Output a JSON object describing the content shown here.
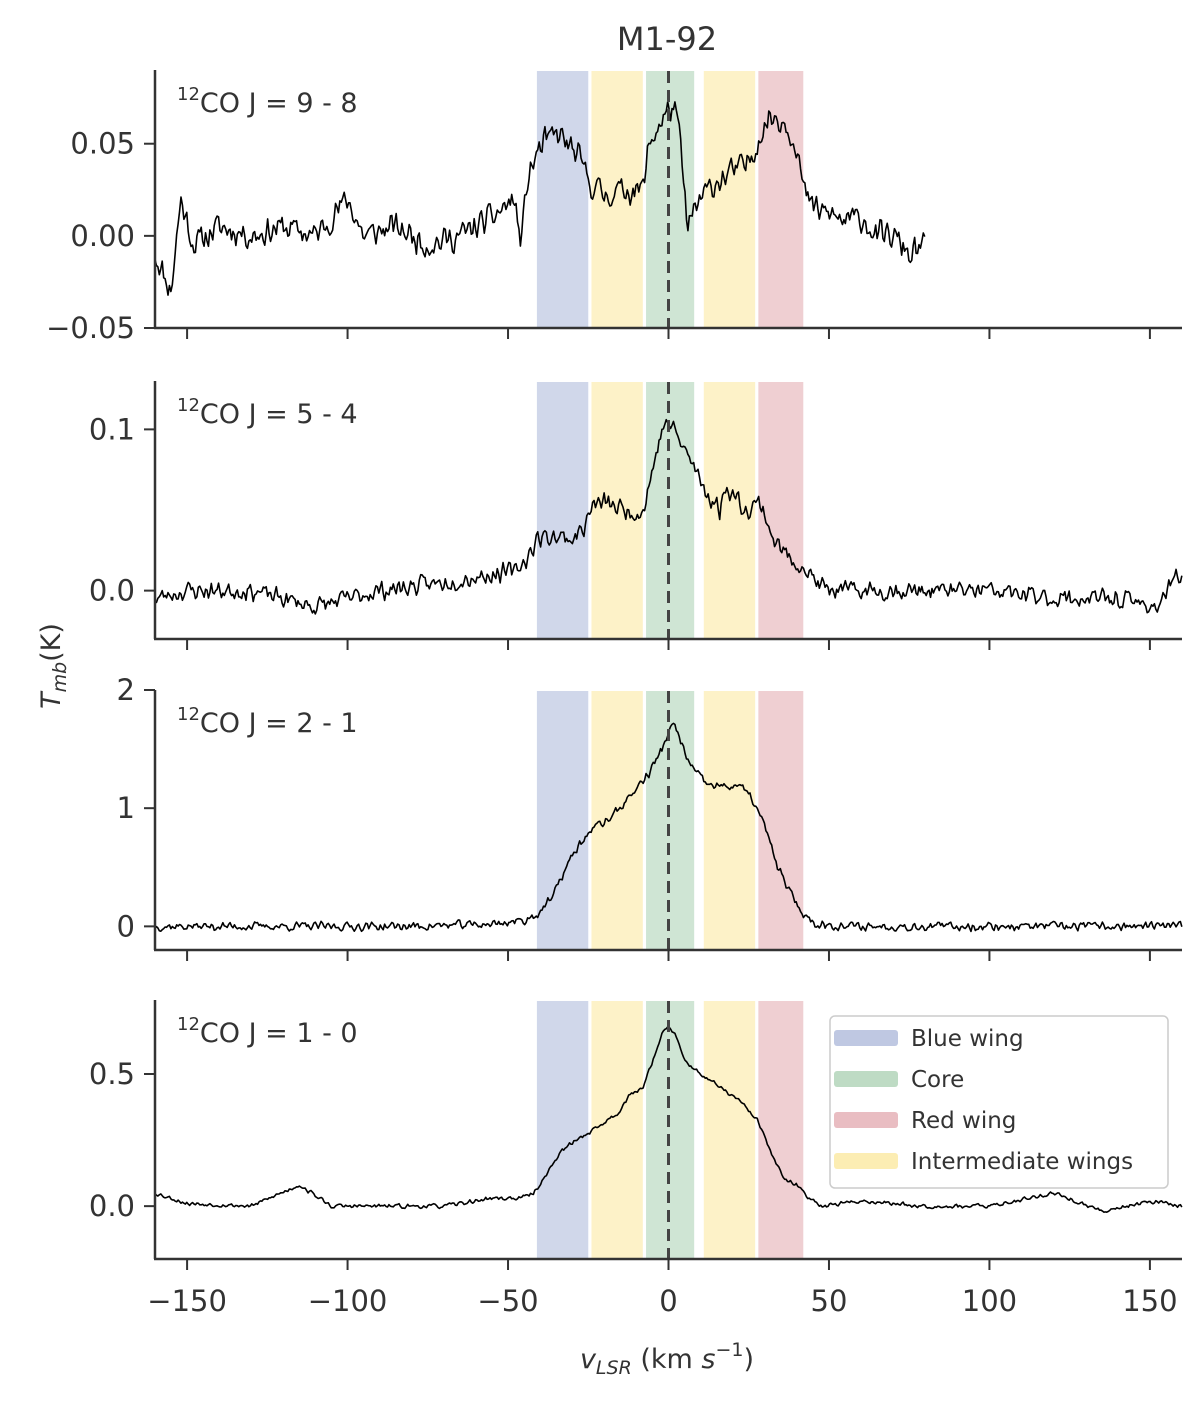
{
  "chart_data": {
    "type": "line",
    "title": "M1-92",
    "xlabel": "v_LSR (km s^-1)",
    "ylabel": "T_mb(K)",
    "xlim": [
      -160,
      160
    ],
    "x_ticks": [
      -150,
      -100,
      -50,
      0,
      50,
      100,
      150
    ],
    "x_tick_labels": [
      "−150",
      "−100",
      "−50",
      "0",
      "50",
      "100",
      "150"
    ],
    "vline_x": 0,
    "regions": [
      {
        "name": "Blue wing",
        "x0": -41,
        "x1": -25,
        "color": "#a9b6d8"
      },
      {
        "name": "Intermediate wings",
        "x0": -24,
        "x1": -8,
        "color": "#fbe79a"
      },
      {
        "name": "Core",
        "x0": -7,
        "x1": 8,
        "color": "#a8cfb0"
      },
      {
        "name": "Intermediate wings",
        "x0": 11,
        "x1": 27,
        "color": "#fbe79a"
      },
      {
        "name": "Red wing",
        "x0": 28,
        "x1": 42,
        "color": "#e2a7ad"
      }
    ],
    "legend": {
      "placement": "right",
      "entries": [
        {
          "label": "Blue wing",
          "color": "#a9b6d8"
        },
        {
          "label": "Core",
          "color": "#a8cfb0"
        },
        {
          "label": "Red wing",
          "color": "#e2a7ad"
        },
        {
          "label": "Intermediate wings",
          "color": "#fbe79a"
        }
      ]
    },
    "panels": [
      {
        "label_sup": "12",
        "label": "CO J = 9 - 8",
        "ylim": [
          -0.05,
          0.09
        ],
        "y_ticks": [
          0.05,
          0.0,
          -0.05
        ],
        "y_tick_labels": [
          "0.05",
          "0.00",
          "−0.05"
        ],
        "x_range": [
          -160,
          80
        ],
        "noise": 0.009,
        "seed": 11,
        "profile": [
          [
            -160,
            -0.01
          ],
          [
            -155,
            -0.03
          ],
          [
            -152,
            0.02
          ],
          [
            -148,
            -0.005
          ],
          [
            -140,
            0.005
          ],
          [
            -130,
            0.0
          ],
          [
            -120,
            0.005
          ],
          [
            -110,
            0.0
          ],
          [
            -100,
            0.02
          ],
          [
            -95,
            0.0
          ],
          [
            -85,
            0.005
          ],
          [
            -75,
            -0.005
          ],
          [
            -65,
            0.0
          ],
          [
            -55,
            0.01
          ],
          [
            -48,
            0.02
          ],
          [
            -46,
            -0.005
          ],
          [
            -44,
            0.03
          ],
          [
            -41,
            0.045
          ],
          [
            -38,
            0.052
          ],
          [
            -34,
            0.055
          ],
          [
            -28,
            0.042
          ],
          [
            -24,
            0.028
          ],
          [
            -20,
            0.022
          ],
          [
            -14,
            0.025
          ],
          [
            -8,
            0.025
          ],
          [
            -6,
            0.05
          ],
          [
            -3,
            0.06
          ],
          [
            0,
            0.068
          ],
          [
            2,
            0.07
          ],
          [
            4,
            0.045
          ],
          [
            5,
            0.02
          ],
          [
            6,
            0.005
          ],
          [
            10,
            0.02
          ],
          [
            14,
            0.028
          ],
          [
            20,
            0.035
          ],
          [
            24,
            0.038
          ],
          [
            27,
            0.048
          ],
          [
            30,
            0.06
          ],
          [
            32,
            0.065
          ],
          [
            36,
            0.062
          ],
          [
            40,
            0.05
          ],
          [
            42,
            0.025
          ],
          [
            45,
            0.015
          ],
          [
            50,
            0.012
          ],
          [
            55,
            0.008
          ],
          [
            60,
            0.01
          ],
          [
            65,
            0.0
          ],
          [
            70,
            0.0
          ],
          [
            75,
            -0.01
          ],
          [
            80,
            -0.005
          ]
        ]
      },
      {
        "label_sup": "12",
        "label": "CO J = 5 - 4",
        "ylim": [
          -0.03,
          0.13
        ],
        "y_ticks": [
          0.1,
          0.0
        ],
        "y_tick_labels": [
          "0.1",
          "0.0"
        ],
        "x_range": [
          -160,
          160
        ],
        "noise": 0.007,
        "seed": 23,
        "profile": [
          [
            -160,
            -0.005
          ],
          [
            -150,
            0.0
          ],
          [
            -130,
            0.0
          ],
          [
            -110,
            -0.01
          ],
          [
            -90,
            0.0
          ],
          [
            -70,
            0.005
          ],
          [
            -55,
            0.01
          ],
          [
            -48,
            0.012
          ],
          [
            -44,
            0.02
          ],
          [
            -41,
            0.032
          ],
          [
            -36,
            0.034
          ],
          [
            -30,
            0.032
          ],
          [
            -26,
            0.04
          ],
          [
            -24,
            0.052
          ],
          [
            -20,
            0.055
          ],
          [
            -14,
            0.05
          ],
          [
            -8,
            0.048
          ],
          [
            -5,
            0.075
          ],
          [
            -2,
            0.1
          ],
          [
            0,
            0.105
          ],
          [
            3,
            0.095
          ],
          [
            7,
            0.08
          ],
          [
            12,
            0.06
          ],
          [
            16,
            0.05
          ],
          [
            18,
            0.065
          ],
          [
            20,
            0.06
          ],
          [
            24,
            0.05
          ],
          [
            28,
            0.055
          ],
          [
            30,
            0.048
          ],
          [
            33,
            0.03
          ],
          [
            38,
            0.02
          ],
          [
            42,
            0.015
          ],
          [
            46,
            0.005
          ],
          [
            50,
            0.0
          ],
          [
            60,
            0.0
          ],
          [
            80,
            0.0
          ],
          [
            100,
            0.0
          ],
          [
            120,
            -0.005
          ],
          [
            140,
            -0.005
          ],
          [
            152,
            -0.01
          ],
          [
            160,
            0.012
          ]
        ]
      },
      {
        "label_sup": "12",
        "label": "CO J = 2 - 1",
        "ylim": [
          -0.2,
          2.0
        ],
        "y_ticks": [
          2,
          1,
          0
        ],
        "y_tick_labels": [
          "2",
          "1",
          "0"
        ],
        "x_range": [
          -160,
          160
        ],
        "noise": 0.045,
        "seed": 37,
        "profile": [
          [
            -160,
            0.0
          ],
          [
            -120,
            0.0
          ],
          [
            -80,
            0.0
          ],
          [
            -55,
            0.02
          ],
          [
            -45,
            0.05
          ],
          [
            -41,
            0.1
          ],
          [
            -36,
            0.25
          ],
          [
            -32,
            0.5
          ],
          [
            -28,
            0.68
          ],
          [
            -24,
            0.82
          ],
          [
            -18,
            0.92
          ],
          [
            -12,
            1.1
          ],
          [
            -6,
            1.3
          ],
          [
            -2,
            1.5
          ],
          [
            0,
            1.65
          ],
          [
            2,
            1.7
          ],
          [
            4,
            1.55
          ],
          [
            7,
            1.35
          ],
          [
            12,
            1.2
          ],
          [
            18,
            1.18
          ],
          [
            22,
            1.2
          ],
          [
            26,
            1.08
          ],
          [
            30,
            0.85
          ],
          [
            34,
            0.5
          ],
          [
            38,
            0.28
          ],
          [
            42,
            0.1
          ],
          [
            46,
            0.02
          ],
          [
            55,
            0.0
          ],
          [
            100,
            0.0
          ],
          [
            160,
            0.0
          ]
        ]
      },
      {
        "label_sup": "12",
        "label": "CO J = 1 - 0",
        "ylim": [
          -0.2,
          0.78
        ],
        "y_ticks": [
          0.5,
          0.0
        ],
        "y_tick_labels": [
          "0.5",
          "0.0"
        ],
        "x_range": [
          -160,
          160
        ],
        "noise": 0.01,
        "seed": 53,
        "profile": [
          [
            -160,
            0.05
          ],
          [
            -150,
            0.01
          ],
          [
            -130,
            0.0
          ],
          [
            -115,
            0.08
          ],
          [
            -105,
            0.0
          ],
          [
            -90,
            0.0
          ],
          [
            -70,
            0.0
          ],
          [
            -55,
            0.03
          ],
          [
            -46,
            0.03
          ],
          [
            -42,
            0.05
          ],
          [
            -38,
            0.12
          ],
          [
            -34,
            0.2
          ],
          [
            -30,
            0.24
          ],
          [
            -26,
            0.27
          ],
          [
            -22,
            0.3
          ],
          [
            -16,
            0.35
          ],
          [
            -12,
            0.42
          ],
          [
            -8,
            0.45
          ],
          [
            -5,
            0.55
          ],
          [
            -2,
            0.65
          ],
          [
            0,
            0.68
          ],
          [
            2,
            0.65
          ],
          [
            5,
            0.55
          ],
          [
            10,
            0.5
          ],
          [
            16,
            0.45
          ],
          [
            22,
            0.4
          ],
          [
            28,
            0.32
          ],
          [
            32,
            0.2
          ],
          [
            36,
            0.1
          ],
          [
            40,
            0.08
          ],
          [
            43,
            0.04
          ],
          [
            48,
            0.0
          ],
          [
            60,
            0.02
          ],
          [
            80,
            0.0
          ],
          [
            100,
            0.0
          ],
          [
            120,
            0.05
          ],
          [
            135,
            -0.02
          ],
          [
            150,
            0.02
          ],
          [
            160,
            0.0
          ]
        ]
      }
    ]
  }
}
